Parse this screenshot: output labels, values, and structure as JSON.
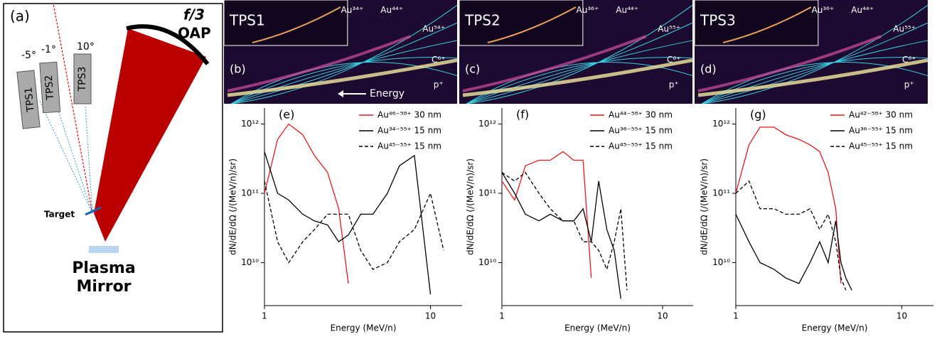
{
  "diagram": {
    "letter": "(a)",
    "lens": "f/3",
    "oap": "OAP",
    "angles": [
      "-5°",
      "-1°",
      "10°"
    ],
    "detectors": [
      "TPS1",
      "TPS2",
      "TPS3"
    ],
    "target": "Target",
    "mirror": [
      "Plasma",
      "Mirror"
    ]
  },
  "images": [
    {
      "letter": "(b)",
      "title": "TPS1",
      "labels": [
        "Au³⁴⁺",
        "Au⁴⁴⁺",
        "Au⁵⁴⁺",
        "C⁶⁺",
        "p⁺"
      ],
      "arrow": "Energy"
    },
    {
      "letter": "(c)",
      "title": "TPS2",
      "labels": [
        "Au³⁶⁺",
        "Au⁴⁴⁺",
        "Au⁵⁵⁺",
        "C⁶⁺",
        "p⁺"
      ]
    },
    {
      "letter": "(d)",
      "title": "TPS3",
      "labels": [
        "Au³⁶⁺",
        "Au⁴⁴⁺",
        "Au⁵⁵⁺",
        "C⁶⁺",
        "p⁺"
      ]
    }
  ],
  "chart_data": [
    {
      "type": "line",
      "letter": "(e)",
      "xlabel": "Energy (MeV/n)",
      "ylabel": "dN/dE/dΩ (/(MeV/n)/sr)",
      "log_x": true,
      "log_y": true,
      "xlim": [
        1,
        15.5
      ],
      "xticks": [
        1,
        10
      ],
      "ylim": [
        2400000000.0,
        1700000000000.0
      ],
      "yticks": [
        {
          "value": 10000000000.0,
          "label": "10¹⁰"
        },
        {
          "value": 100000000000.0,
          "label": "10¹¹"
        },
        {
          "value": 1000000000000.0,
          "label": "10¹²"
        }
      ],
      "x": [
        1,
        1.2,
        1.4,
        1.7,
        2,
        2.4,
        2.8,
        3.2,
        3.8,
        4.5,
        5.5,
        6.5,
        8,
        10,
        12
      ],
      "series": [
        {
          "name": "Au⁴⁶⁻⁵⁸⁺ 30 nm",
          "color": "#e8191a",
          "dash": false,
          "values": [
            100000000000.0,
            600000000000.0,
            1000000000000.0,
            700000000000.0,
            350000000000.0,
            200000000000.0,
            60000000000.0,
            5000000000.0,
            null,
            null,
            null,
            null,
            null,
            null,
            null
          ]
        },
        {
          "name": "Au³⁴⁻⁵⁵⁺ 15 nm",
          "color": "#000000",
          "dash": false,
          "values": [
            400000000000.0,
            100000000000.0,
            80000000000.0,
            50000000000.0,
            40000000000.0,
            35000000000.0,
            20000000000.0,
            25000000000.0,
            50000000000.0,
            50000000000.0,
            100000000000.0,
            250000000000.0,
            350000000000.0,
            3500000000.0,
            null
          ]
        },
        {
          "name": "Au⁴⁵⁻⁵⁵⁺ 15 nm",
          "color": "#000000",
          "dash": true,
          "values": [
            150000000000.0,
            20000000000.0,
            10000000000.0,
            20000000000.0,
            30000000000.0,
            50000000000.0,
            50000000000.0,
            50000000000.0,
            15000000000.0,
            8000000000.0,
            10000000000.0,
            20000000000.0,
            30000000000.0,
            100000000000.0,
            15000000000.0
          ]
        }
      ]
    },
    {
      "type": "line",
      "letter": "(f)",
      "xlabel": "Energy (MeV/n)",
      "ylabel": "dN/dE/dΩ (/(MeV/n)/sr)",
      "log_x": true,
      "log_y": true,
      "xlim": [
        1,
        15.5
      ],
      "xticks": [
        1,
        10
      ],
      "ylim": [
        2400000000.0,
        1700000000000.0
      ],
      "yticks": [
        {
          "value": 10000000000.0,
          "label": "10¹⁰"
        },
        {
          "value": 100000000000.0,
          "label": "10¹¹"
        },
        {
          "value": 1000000000000.0,
          "label": "10¹²"
        }
      ],
      "x": [
        1,
        1.2,
        1.4,
        1.7,
        2,
        2.4,
        2.8,
        3.2,
        3.6,
        4,
        4.5,
        5,
        5.5,
        6,
        7
      ],
      "series": [
        {
          "name": "Au⁴⁴⁻⁵⁸⁺ 30 nm",
          "color": "#e8191a",
          "dash": false,
          "values": [
            150000000000.0,
            80000000000.0,
            250000000000.0,
            300000000000.0,
            300000000000.0,
            400000000000.0,
            300000000000.0,
            300000000000.0,
            6000000000.0,
            null,
            null,
            null,
            null,
            null,
            null
          ]
        },
        {
          "name": "Au³⁶⁻⁵⁵⁺ 15 nm",
          "color": "#000000",
          "dash": false,
          "values": [
            200000000000.0,
            100000000000.0,
            50000000000.0,
            40000000000.0,
            50000000000.0,
            40000000000.0,
            40000000000.0,
            60000000000.0,
            20000000000.0,
            150000000000.0,
            30000000000.0,
            15000000000.0,
            3000000000.0,
            null,
            null
          ]
        },
        {
          "name": "Au⁴⁵⁻⁵⁵⁺ 15 nm",
          "color": "#000000",
          "dash": true,
          "values": [
            200000000000.0,
            150000000000.0,
            200000000000.0,
            100000000000.0,
            60000000000.0,
            40000000000.0,
            40000000000.0,
            20000000000.0,
            20000000000.0,
            15000000000.0,
            8000000000.0,
            20000000000.0,
            60000000000.0,
            4000000000.0,
            null
          ]
        }
      ]
    },
    {
      "type": "line",
      "letter": "(g)",
      "xlabel": "Energy (MeV/n)",
      "ylabel": "dN/dE/dΩ (/(MeV/n)/sr)",
      "log_x": true,
      "log_y": true,
      "xlim": [
        1,
        15.5
      ],
      "xticks": [
        1,
        10
      ],
      "ylim": [
        2400000000.0,
        1700000000000.0
      ],
      "yticks": [
        {
          "value": 10000000000.0,
          "label": "10¹⁰"
        },
        {
          "value": 100000000000.0,
          "label": "10¹¹"
        },
        {
          "value": 1000000000000.0,
          "label": "10¹²"
        }
      ],
      "x": [
        1,
        1.2,
        1.4,
        1.7,
        2,
        2.4,
        2.8,
        3.2,
        3.6,
        4,
        4.3,
        4.6,
        5,
        5.5,
        6
      ],
      "series": [
        {
          "name": "Au⁴²⁻⁵⁸⁺ 30 nm",
          "color": "#e8191a",
          "dash": false,
          "values": [
            100000000000.0,
            500000000000.0,
            900000000000.0,
            900000000000.0,
            700000000000.0,
            600000000000.0,
            500000000000.0,
            400000000000.0,
            200000000000.0,
            60000000000.0,
            5000000000.0,
            null,
            null,
            null,
            null
          ]
        },
        {
          "name": "Au³⁶⁻⁵⁵⁺ 15 nm",
          "color": "#000000",
          "dash": false,
          "values": [
            50000000000.0,
            20000000000.0,
            10000000000.0,
            8000000000.0,
            6000000000.0,
            5000000000.0,
            10000000000.0,
            20000000000.0,
            10000000000.0,
            40000000000.0,
            10000000000.0,
            6000000000.0,
            4000000000.0,
            null,
            null
          ]
        },
        {
          "name": "Au⁴⁵⁻⁵⁵⁺ 15 nm",
          "color": "#000000",
          "dash": true,
          "values": [
            100000000000.0,
            150000000000.0,
            60000000000.0,
            60000000000.0,
            50000000000.0,
            50000000000.0,
            60000000000.0,
            30000000000.0,
            50000000000.0,
            20000000000.0,
            6000000000.0,
            4000000000.0,
            null,
            null,
            4000000000.0
          ]
        }
      ]
    }
  ]
}
